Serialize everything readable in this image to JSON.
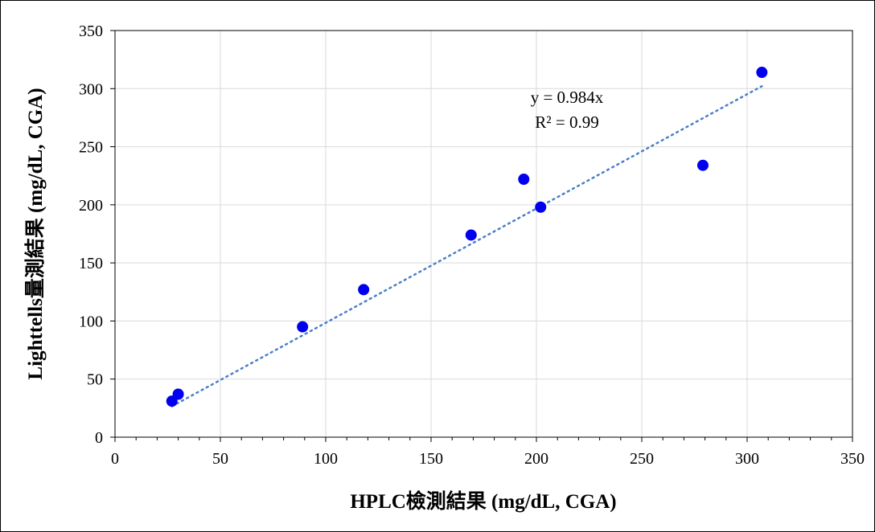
{
  "chart_data": {
    "type": "scatter",
    "xlabel": "HPLC檢測結果 (mg/dL, CGA)",
    "ylabel": "Lighttells量測結果 (mg/dL, CGA)",
    "xlim": [
      0,
      350
    ],
    "ylim": [
      0,
      350
    ],
    "xticks": [
      0,
      50,
      100,
      150,
      200,
      250,
      300,
      350
    ],
    "yticks": [
      0,
      50,
      100,
      150,
      200,
      250,
      300,
      350
    ],
    "grid": true,
    "legend": "none",
    "series": [
      {
        "marker_color": "#0000ee",
        "points": [
          {
            "x": 27,
            "y": 31
          },
          {
            "x": 30,
            "y": 37
          },
          {
            "x": 89,
            "y": 95
          },
          {
            "x": 118,
            "y": 127
          },
          {
            "x": 169,
            "y": 174
          },
          {
            "x": 194,
            "y": 222
          },
          {
            "x": 202,
            "y": 198
          },
          {
            "x": 279,
            "y": 234
          },
          {
            "x": 307,
            "y": 314
          }
        ]
      }
    ],
    "trendline": {
      "slope": 0.984,
      "x_range": [
        27,
        307
      ],
      "color": "#4a7fc8",
      "style": "dotted",
      "equation": "y = 0.984x",
      "r_squared": "R² = 0.99"
    }
  }
}
